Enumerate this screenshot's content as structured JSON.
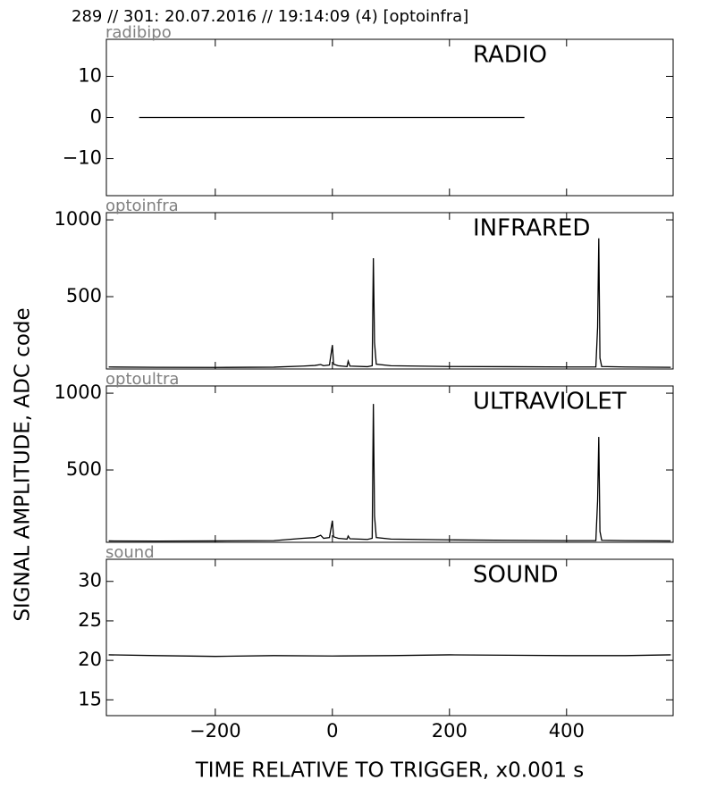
{
  "title": "289 // 301:   20.07.2016 // 19:14:09 (4)  [optoinfra]",
  "ylabel": "SIGNAL AMPLITUDE,  ADC code",
  "xlabel": "TIME RELATIVE TO TRIGGER,   x0.001 s",
  "chart_data": [
    {
      "type": "line",
      "source": "radibipo",
      "label": "RADIO",
      "color": "#000000",
      "x": [
        -330,
        328
      ],
      "values": [
        0,
        0
      ],
      "xlim": [
        -386,
        582
      ],
      "xticks": [
        {
          "value": -200,
          "label": "−200"
        },
        0,
        200,
        400
      ],
      "ylim": [
        -19,
        19
      ],
      "yticks": [
        {
          "value": -10,
          "label": "−10"
        },
        0,
        10
      ]
    },
    {
      "type": "line",
      "source": "optoinfra",
      "label": "INFRARED",
      "color": "#000000",
      "x": [
        -382,
        -300,
        -200,
        -100,
        -50,
        -30,
        -20,
        -15,
        -5,
        0,
        2,
        10,
        25,
        27,
        30,
        60,
        68,
        70,
        72,
        75,
        100,
        200,
        300,
        400,
        450,
        453,
        455,
        457,
        460,
        500,
        578
      ],
      "values": [
        42,
        40,
        39,
        41,
        48,
        52,
        58,
        50,
        55,
        185,
        60,
        50,
        45,
        80,
        48,
        44,
        50,
        750,
        200,
        60,
        50,
        45,
        44,
        42,
        42,
        300,
        880,
        100,
        45,
        42,
        40
      ],
      "xlim": [
        -386,
        582
      ],
      "xticks": [
        {
          "value": -200,
          "label": "−200"
        },
        0,
        200,
        400
      ],
      "ylim": [
        29,
        1047
      ],
      "yticks": [
        500,
        1000
      ]
    },
    {
      "type": "line",
      "source": "optoultra",
      "label": "ULTRAVIOLET",
      "color": "#000000",
      "x": [
        -382,
        -300,
        -200,
        -100,
        -50,
        -30,
        -20,
        -15,
        -5,
        0,
        2,
        10,
        25,
        27,
        30,
        60,
        68,
        70,
        72,
        75,
        100,
        200,
        300,
        400,
        450,
        453,
        455,
        457,
        460,
        500,
        578
      ],
      "values": [
        38,
        37,
        38,
        40,
        55,
        60,
        75,
        55,
        60,
        170,
        65,
        55,
        50,
        70,
        52,
        48,
        55,
        930,
        200,
        60,
        50,
        45,
        42,
        40,
        40,
        300,
        715,
        100,
        42,
        40,
        38
      ],
      "xlim": [
        -386,
        582
      ],
      "xticks": [
        {
          "value": -200,
          "label": "−200"
        },
        0,
        200,
        400
      ],
      "ylim": [
        29,
        1047
      ],
      "yticks": [
        500,
        1000
      ]
    },
    {
      "type": "line",
      "source": "sound",
      "label": "SOUND",
      "color": "#000000",
      "x": [
        -382,
        -300,
        -200,
        -100,
        0,
        100,
        200,
        300,
        400,
        500,
        578
      ],
      "values": [
        20.7,
        20.6,
        20.5,
        20.6,
        20.55,
        20.6,
        20.7,
        20.65,
        20.6,
        20.6,
        20.7
      ],
      "xlim": [
        -386,
        582
      ],
      "xticks": [
        {
          "value": -200,
          "label": "−200"
        },
        0,
        200,
        400
      ],
      "ylim": [
        13,
        32.8
      ],
      "yticks": [
        15,
        20,
        25,
        30
      ]
    }
  ]
}
